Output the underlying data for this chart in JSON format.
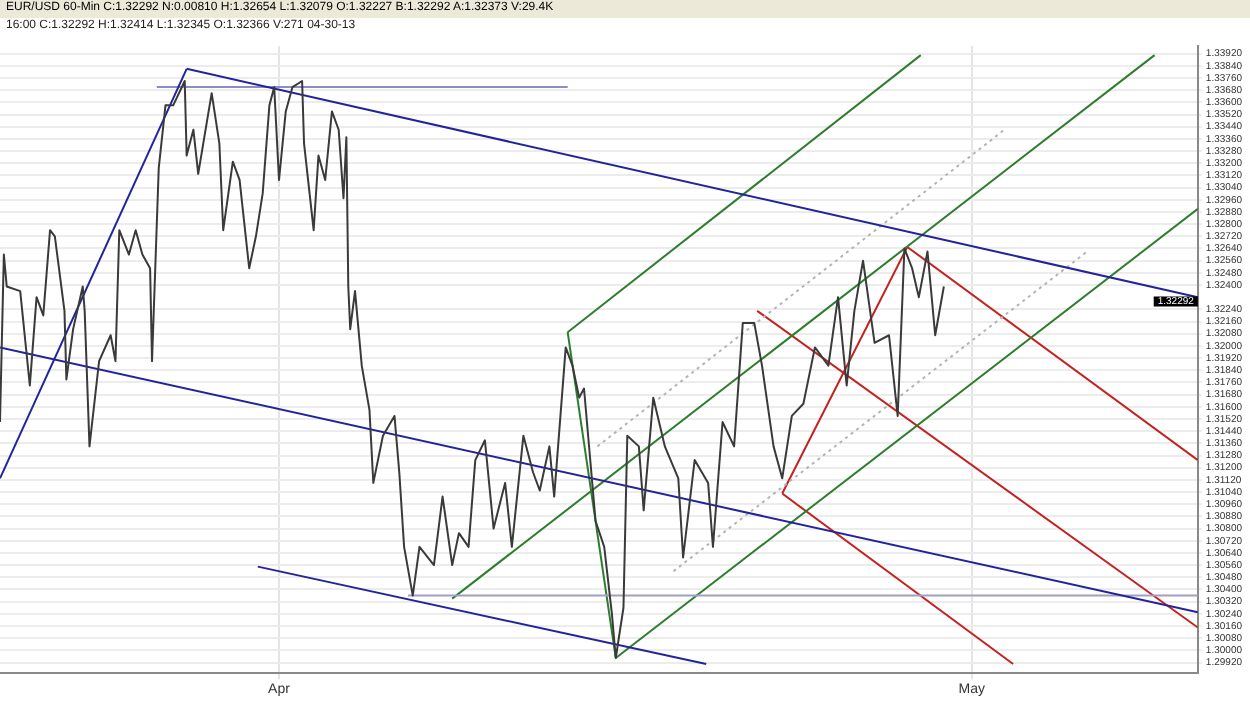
{
  "chart_data": {
    "type": "line",
    "title": "EUR/USD 60-Min C:1.32292 N:0.00810 H:1.32654 L:1.32079 O:1.32227 B:1.32292 A:1.32373 V:29.4K",
    "subtitle": "16:00 C:1.32292 H:1.32414 L:1.32345 O:1.32366 V:271 04-30-13",
    "series": [
      {
        "color": "#3a3a3a",
        "x": [
          "--03-19T22:00",
          "--03-20T02:00",
          "--03-20T05:00",
          "--03-20T19:00",
          "--03-21T05:00",
          "--03-21T12:00",
          "--03-21T19:00",
          "--03-22T02:00",
          "--03-22T07:00",
          "--03-22T17:00",
          "--03-22T19:00",
          "--03-23T02:00",
          "--03-23T12:00",
          "--03-23T14:00",
          "--03-23T19:00",
          "--03-24T05:00",
          "--03-24T17:00",
          "--03-24T22:00",
          "--03-25T02:00",
          "--03-25T12:00",
          "--03-25T19:00",
          "--03-26T02:00",
          "--03-26T10:00",
          "--03-26T12:00",
          "--03-26T19:00",
          "--03-27T02:00",
          "--03-27T10:00",
          "--03-27T22:00",
          "--03-28T00:00",
          "--03-28T07:00",
          "--03-28T12:00",
          "--03-29T02:00",
          "--03-29T10:00",
          "--03-29T14:00",
          "--03-30T00:00",
          "--03-30T07:00",
          "--03-30T17:00",
          "--03-31T00:00",
          "--03-31T07:00",
          "--03-31T14:00",
          "--03-31T19:00",
          "--04-01T00:00",
          "--04-01T07:00",
          "--04-01T14:00",
          "--04-02T00:00",
          "--04-02T02:00",
          "--04-02T12:00",
          "--04-02T17:00",
          "--04-03T00:00",
          "--04-03T07:00",
          "--04-03T14:00",
          "--04-03T19:00",
          "--04-03T22:00",
          "--04-04T00:00",
          "--04-04T02:00",
          "--04-04T07:00",
          "--04-04T14:00",
          "--04-04T22:00",
          "--04-05T02:00",
          "--04-05T12:00",
          "--04-06T00:00",
          "--04-06T05:00",
          "--04-06T10:00",
          "--04-06T19:00",
          "--04-07T02:00",
          "--04-07T17:00",
          "--04-08T02:00",
          "--04-08T12:00",
          "--04-08T19:00",
          "--04-09T05:00",
          "--04-09T12:00",
          "--04-09T22:00",
          "--04-10T07:00",
          "--04-10T19:00",
          "--04-11T02:00",
          "--04-11T14:00",
          "--04-12T00:00",
          "--04-12T07:00",
          "--04-12T17:00",
          "--04-12T22:00",
          "--04-13T10:00",
          "--04-13T17:00",
          "--04-14T00:00",
          "--04-14T05:00",
          "--04-14T17:00",
          "--04-15T02:00",
          "--04-15T10:00",
          "--04-15T14:00",
          "--04-15T22:00",
          "--04-16T02:00",
          "--04-16T14:00",
          "--04-16T19:00",
          "--04-17T05:00",
          "--04-17T17:00",
          "--04-18T07:00",
          "--04-18T12:00",
          "--04-19T00:00",
          "--04-19T14:00",
          "--04-19T19:00",
          "--04-20T05:00",
          "--04-20T17:00",
          "--04-21T02:00",
          "--04-21T14:00",
          "--04-21T22:00",
          "--04-22T10:00",
          "--04-22T19:00",
          "--04-23T05:00",
          "--04-23T17:00",
          "--04-24T05:00",
          "--04-24T19:00",
          "--04-25T05:00",
          "--04-25T14:00",
          "--04-25T22:00",
          "--04-26T07:00",
          "--04-26T19:00",
          "--04-27T10:00",
          "--04-27T19:00",
          "--04-28T02:00",
          "--04-28T10:00",
          "--04-28T17:00",
          "--04-29T02:00",
          "--04-29T10:00",
          "--04-29T19:00"
        ],
        "values": [
          1.315,
          1.326,
          1.3239,
          1.3236,
          1.3174,
          1.3232,
          1.322,
          1.3276,
          1.3272,
          1.3223,
          1.3178,
          1.3211,
          1.3239,
          1.3223,
          1.3134,
          1.319,
          1.3207,
          1.319,
          1.3276,
          1.326,
          1.3276,
          1.326,
          1.3251,
          1.319,
          1.3317,
          1.3358,
          1.3358,
          1.3374,
          1.3325,
          1.3342,
          1.3313,
          1.3366,
          1.3333,
          1.3276,
          1.3321,
          1.3309,
          1.3251,
          1.3272,
          1.33,
          1.3358,
          1.337,
          1.3309,
          1.3354,
          1.337,
          1.3374,
          1.3333,
          1.3276,
          1.3325,
          1.3309,
          1.3354,
          1.3342,
          1.3297,
          1.3337,
          1.3239,
          1.3211,
          1.3236,
          1.3187,
          1.3158,
          1.311,
          1.3141,
          1.3154,
          1.3117,
          1.3068,
          1.3036,
          1.3068,
          1.3056,
          1.3101,
          1.3056,
          1.3077,
          1.3068,
          1.3125,
          1.3138,
          1.308,
          1.311,
          1.3068,
          1.3141,
          1.3117,
          1.3105,
          1.3134,
          1.3101,
          1.3199,
          1.3187,
          1.3166,
          1.3172,
          1.3085,
          1.3068,
          1.3024,
          1.2995,
          1.3028,
          1.3141,
          1.3134,
          1.3092,
          1.3166,
          1.3134,
          1.3113,
          1.3061,
          1.3125,
          1.311,
          1.3068,
          1.315,
          1.3134,
          1.3215,
          1.3215,
          1.3187,
          1.3134,
          1.3113,
          1.3154,
          1.3162,
          1.3199,
          1.3187,
          1.3232,
          1.3174,
          1.3223,
          1.3256,
          1.3202,
          1.3207,
          1.3154,
          1.3264,
          1.3251,
          1.3232,
          1.3262,
          1.3207,
          1.3239
        ]
      },
      {
        "color": "#24249a",
        "x": [
          "--03-19T22:00",
          "--03-28T00:00"
        ],
        "values": [
          1.3113,
          1.3382
        ]
      },
      {
        "color": "#24249a",
        "x": [
          "--03-28T00:00",
          "--05-10T19:00"
        ],
        "values": [
          1.3382,
          1.3232
        ]
      },
      {
        "color": "#24249a",
        "x": [
          "--03-19T22:00",
          "--05-10T19:00"
        ],
        "values": [
          1.3199,
          1.3025
        ]
      },
      {
        "color": "#24249a",
        "x": [
          "--03-31T02:00",
          "--04-19T12:00"
        ],
        "values": [
          1.3055,
          1.2991
        ]
      },
      {
        "color": "#8c8cc8",
        "x": [
          "--03-26T17:00",
          "--04-13T12:00"
        ],
        "values": [
          1.337,
          1.337
        ]
      },
      {
        "color": "#a0a0c0",
        "x": [
          "--04-06T14:00",
          "--05-10T19:00"
        ],
        "values": [
          1.3036,
          1.3036
        ]
      },
      {
        "color": "#2e7d2e",
        "x": [
          "--04-13T12:00",
          "--04-28T19:00"
        ],
        "values": [
          1.3209,
          1.3391
        ]
      },
      {
        "color": "#2e7d2e",
        "x": [
          "--04-08T12:00",
          "--05-08T22:00"
        ],
        "values": [
          1.3034,
          1.3391
        ]
      },
      {
        "color": "#2e7d2e",
        "x": [
          "--04-15T14:00",
          "--05-10T19:00"
        ],
        "values": [
          1.2995,
          1.329
        ]
      },
      {
        "color": "#2e7d2e",
        "x": [
          "--04-13T12:00",
          "--04-15T14:00"
        ],
        "values": [
          1.3209,
          1.2995
        ]
      },
      {
        "color": "#b4b4b4",
        "line_style": "dotted",
        "x": [
          "--04-14T19:00",
          "--05-02T10:00"
        ],
        "values": [
          1.3134,
          1.3342
        ]
      },
      {
        "color": "#b4b4b4",
        "line_style": "dotted",
        "x": [
          "--04-18T02:00",
          "--05-06T00:00"
        ],
        "values": [
          1.3052,
          1.3262
        ]
      },
      {
        "color": "#c42222",
        "x": [
          "--04-28T05:00",
          "--05-10T19:00"
        ],
        "values": [
          1.3265,
          1.3125
        ]
      },
      {
        "color": "#c42222",
        "x": [
          "--04-21T17:00",
          "--05-10T19:00"
        ],
        "values": [
          1.3223,
          1.3015
        ]
      },
      {
        "color": "#c42222",
        "x": [
          "--04-22T19:00",
          "--05-02T19:00"
        ],
        "values": [
          1.3103,
          1.2991
        ]
      },
      {
        "color": "#c42222",
        "x": [
          "--04-22T19:00",
          "--04-28T05:00"
        ],
        "values": [
          1.3103,
          1.3265
        ]
      }
    ],
    "xlim": [
      "--03-19T22:00",
      "--05-10T19:00"
    ],
    "xticks": [
      {
        "value": "--04-01",
        "label": "Apr"
      },
      {
        "value": "--05-01",
        "label": "May"
      }
    ],
    "ylim": [
      1.2985,
      1.3397
    ],
    "yticks": [
      {
        "value": 1.2992,
        "label": "1.29920"
      },
      {
        "value": 1.3,
        "label": "1.30000"
      },
      {
        "value": 1.3008,
        "label": "1.30080"
      },
      {
        "value": 1.3016,
        "label": "1.30160"
      },
      {
        "value": 1.3024,
        "label": "1.30240"
      },
      {
        "value": 1.3032,
        "label": "1.30320"
      },
      {
        "value": 1.304,
        "label": "1.30400"
      },
      {
        "value": 1.3048,
        "label": "1.30480"
      },
      {
        "value": 1.3056,
        "label": "1.30560"
      },
      {
        "value": 1.3064,
        "label": "1.30640"
      },
      {
        "value": 1.3072,
        "label": "1.30720"
      },
      {
        "value": 1.308,
        "label": "1.30800"
      },
      {
        "value": 1.3088,
        "label": "1.30880"
      },
      {
        "value": 1.3096,
        "label": "1.30960"
      },
      {
        "value": 1.3104,
        "label": "1.31040"
      },
      {
        "value": 1.3112,
        "label": "1.31120"
      },
      {
        "value": 1.312,
        "label": "1.31200"
      },
      {
        "value": 1.3128,
        "label": "1.31280"
      },
      {
        "value": 1.3136,
        "label": "1.31360"
      },
      {
        "value": 1.3144,
        "label": "1.31440"
      },
      {
        "value": 1.3152,
        "label": "1.31520"
      },
      {
        "value": 1.316,
        "label": "1.31600"
      },
      {
        "value": 1.3168,
        "label": "1.31680"
      },
      {
        "value": 1.3176,
        "label": "1.31760"
      },
      {
        "value": 1.3184,
        "label": "1.31840"
      },
      {
        "value": 1.3192,
        "label": "1.31920"
      },
      {
        "value": 1.32,
        "label": "1.32000"
      },
      {
        "value": 1.3208,
        "label": "1.32080"
      },
      {
        "value": 1.3216,
        "label": "1.32160"
      },
      {
        "value": 1.3224,
        "label": "1.32240"
      },
      {
        "value": 1.324,
        "label": "1.32400"
      },
      {
        "value": 1.3248,
        "label": "1.32480"
      },
      {
        "value": 1.3256,
        "label": "1.32560"
      },
      {
        "value": 1.3264,
        "label": "1.32640"
      },
      {
        "value": 1.3272,
        "label": "1.32720"
      },
      {
        "value": 1.328,
        "label": "1.32800"
      },
      {
        "value": 1.3288,
        "label": "1.32880"
      },
      {
        "value": 1.3296,
        "label": "1.32960"
      },
      {
        "value": 1.3304,
        "label": "1.33040"
      },
      {
        "value": 1.3312,
        "label": "1.33120"
      },
      {
        "value": 1.332,
        "label": "1.33200"
      },
      {
        "value": 1.3328,
        "label": "1.33280"
      },
      {
        "value": 1.3336,
        "label": "1.33360"
      },
      {
        "value": 1.3344,
        "label": "1.33440"
      },
      {
        "value": 1.3352,
        "label": "1.33520"
      },
      {
        "value": 1.336,
        "label": "1.33600"
      },
      {
        "value": 1.3368,
        "label": "1.33680"
      },
      {
        "value": 1.3376,
        "label": "1.33760"
      },
      {
        "value": 1.3384,
        "label": "1.33840"
      },
      {
        "value": 1.3392,
        "label": "1.33920"
      }
    ],
    "annotations": [
      {
        "text": "1.32292",
        "x": "--05-10T19:00",
        "y": 1.32292
      }
    ],
    "grid": true,
    "legend": false
  }
}
